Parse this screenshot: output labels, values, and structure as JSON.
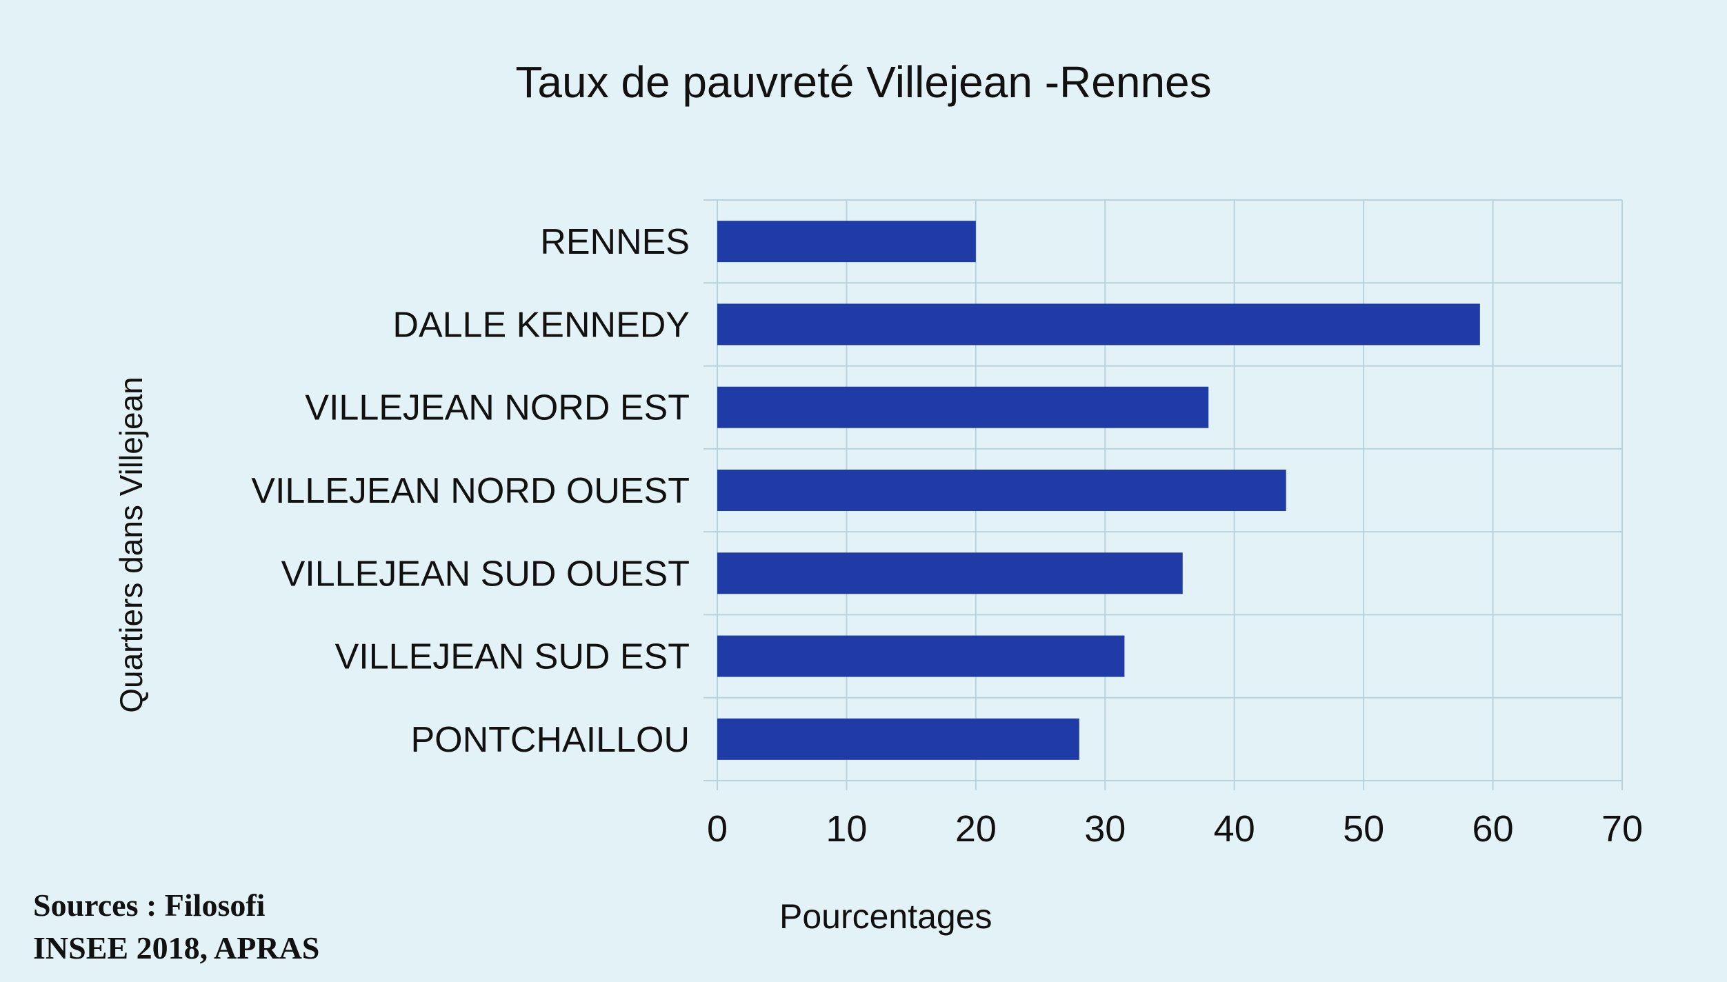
{
  "chart_data": {
    "type": "bar",
    "orientation": "horizontal",
    "title": "Taux de pauvreté Villejean -Rennes",
    "xlabel": "Pourcentages",
    "ylabel": "Quartiers dans Villejean",
    "categories": [
      "RENNES",
      "DALLE KENNEDY",
      "VILLEJEAN NORD EST",
      "VILLEJEAN NORD OUEST",
      "VILLEJEAN SUD OUEST",
      "VILLEJEAN SUD EST",
      "PONTCHAILLOU"
    ],
    "values": [
      20,
      59,
      38,
      44,
      36,
      31.5,
      28
    ],
    "xlim": [
      0,
      70
    ],
    "xticks": [
      "0",
      "10",
      "20",
      "30",
      "40",
      "50",
      "60",
      "70"
    ],
    "grid": true,
    "bar_color": "#1e3ba6",
    "grid_color": "#b9d3de"
  },
  "footer": {
    "source_line1": "Sources : Filosofi",
    "source_line2": "INSEE 2018, APRAS"
  }
}
